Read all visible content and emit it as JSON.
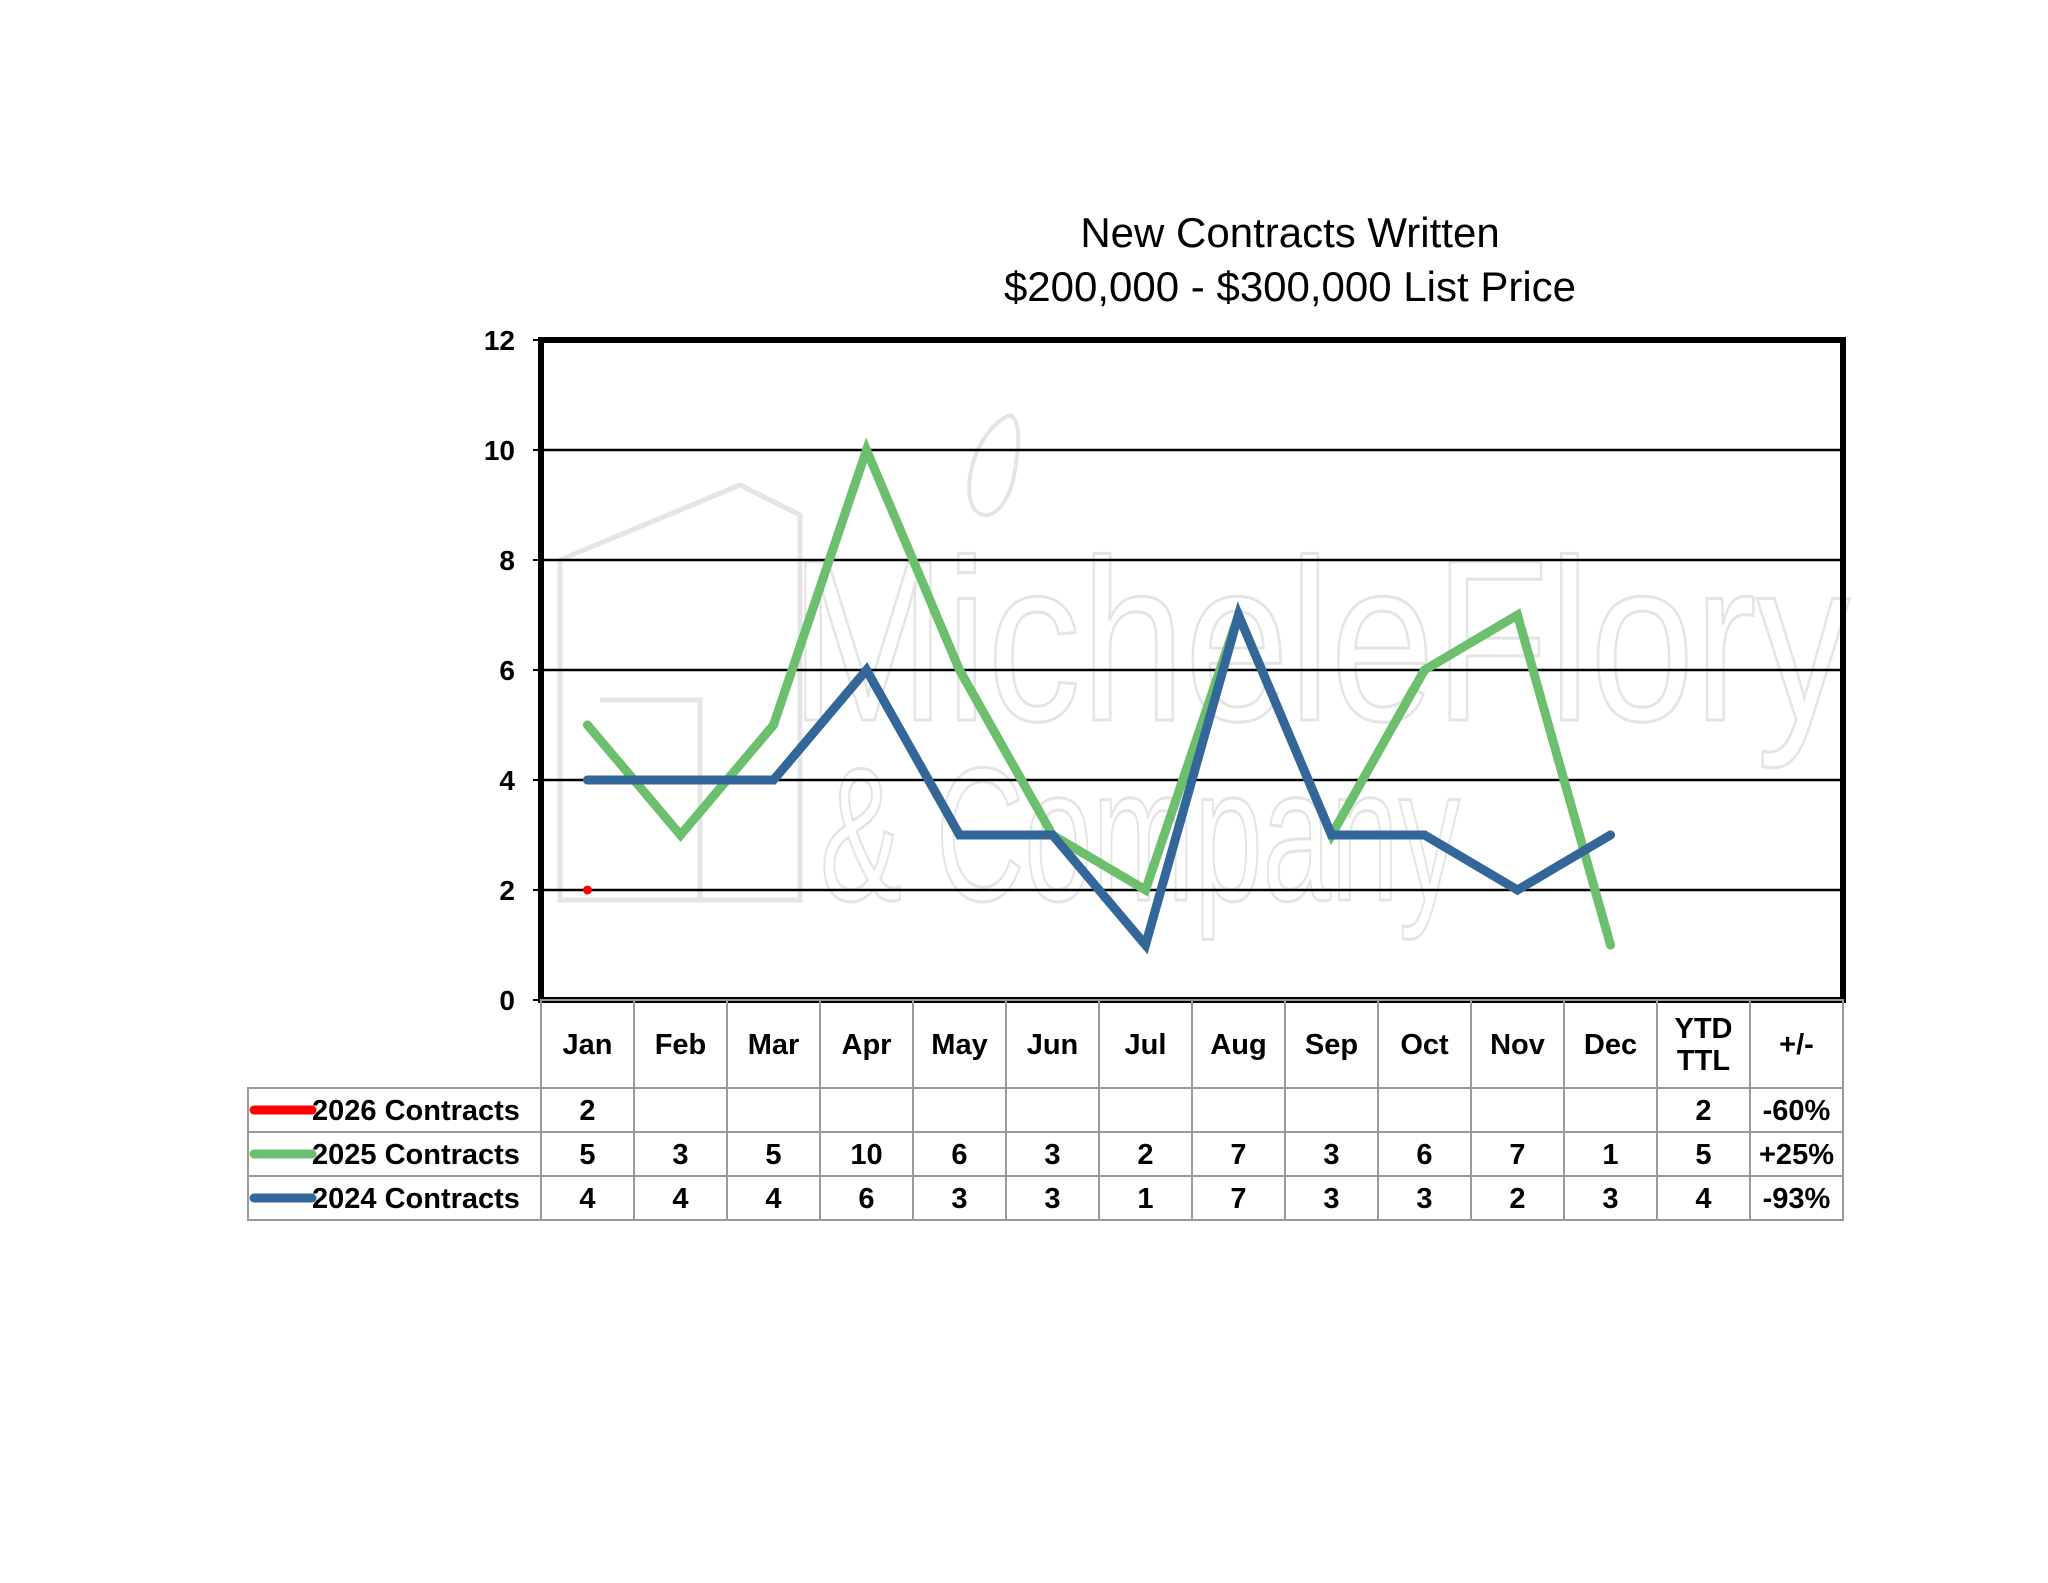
{
  "chart_data": {
    "type": "line",
    "title": "New Contracts Written",
    "subtitle": "$200,000 - $300,000 List Price",
    "categories": [
      "Jan",
      "Feb",
      "Mar",
      "Apr",
      "May",
      "Jun",
      "Jul",
      "Aug",
      "Sep",
      "Oct",
      "Nov",
      "Dec"
    ],
    "summary_headers": [
      "YTD\nTTL",
      "+/-"
    ],
    "ylim": [
      0,
      12
    ],
    "yticks": [
      0,
      2,
      4,
      6,
      8,
      10,
      12
    ],
    "grid": true,
    "legend": "table-left",
    "series": [
      {
        "name": "2026 Contracts",
        "color": "#ff0000",
        "values": [
          2,
          null,
          null,
          null,
          null,
          null,
          null,
          null,
          null,
          null,
          null,
          null
        ],
        "ytd": "2",
        "change": "-60%"
      },
      {
        "name": "2025 Contracts",
        "color": "#6cbf6c",
        "values": [
          5,
          3,
          5,
          10,
          6,
          3,
          2,
          7,
          3,
          6,
          7,
          1
        ],
        "ytd": "5",
        "change": "+25%"
      },
      {
        "name": "2024 Contracts",
        "color": "#336699",
        "values": [
          4,
          4,
          4,
          6,
          3,
          3,
          1,
          7,
          3,
          3,
          2,
          3
        ],
        "ytd": "4",
        "change": "-93%"
      }
    ]
  },
  "watermark": {
    "line1": "MicheleFlory",
    "line2": "& Company"
  }
}
